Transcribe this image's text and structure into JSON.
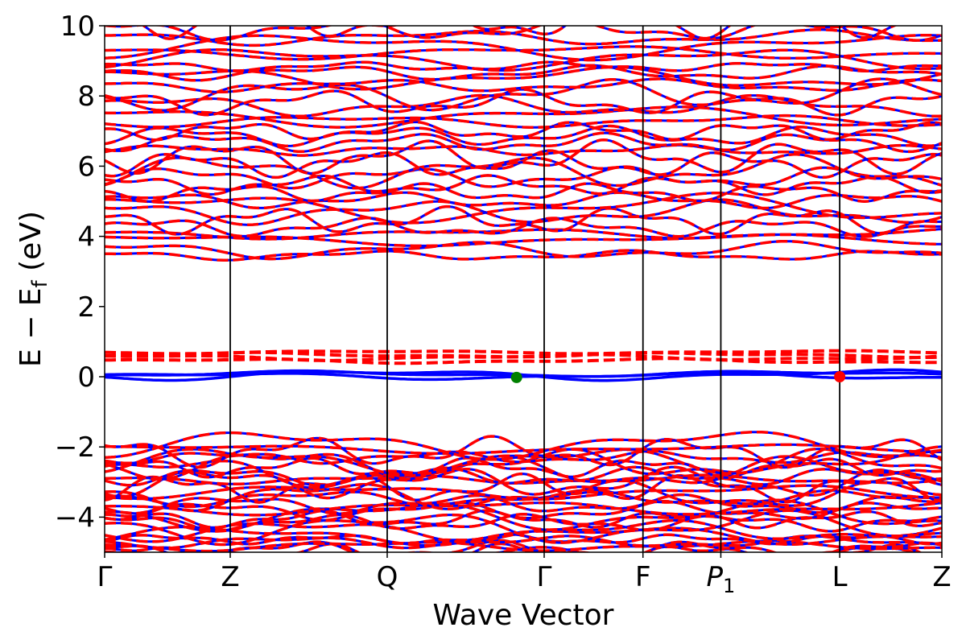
{
  "chart_data": {
    "type": "line",
    "xlabel": "Wave Vector",
    "ylabel_main": "E − E",
    "ylabel_sub": "f",
    "ylabel_unit": " (eV)",
    "ylim": [
      -5,
      10
    ],
    "yticks": [
      {
        "v": -4,
        "label": "−4"
      },
      {
        "v": -2,
        "label": "−2"
      },
      {
        "v": 0,
        "label": "0"
      },
      {
        "v": 2,
        "label": "2"
      },
      {
        "v": 4,
        "label": "4"
      },
      {
        "v": 6,
        "label": "6"
      },
      {
        "v": 8,
        "label": "8"
      },
      {
        "v": 10,
        "label": "10"
      }
    ],
    "kpoints": [
      {
        "x": 0.0,
        "label": "Γ"
      },
      {
        "x": 1.5,
        "label": "Z"
      },
      {
        "x": 3.375,
        "label": "Q"
      },
      {
        "x": 5.25,
        "label": "Γ"
      },
      {
        "x": 6.43,
        "label": "F"
      },
      {
        "x": 7.36,
        "label": "P",
        "sub": "1"
      },
      {
        "x": 8.78,
        "label": "L"
      },
      {
        "x": 10.0,
        "label": "Z"
      }
    ],
    "xlim": [
      0,
      10
    ],
    "spin_up_color": "#0000ff",
    "spin_down_color": "#ff0000",
    "gap_bands_up": [
      {
        "base": 0.02,
        "amp": 0.12
      },
      {
        "base": 0.08,
        "amp": -0.1
      },
      {
        "base": 0.05,
        "amp": 0.18
      }
    ],
    "gap_bands_down": [
      {
        "base": 0.45,
        "amp": 0.08
      },
      {
        "base": 0.55,
        "amp": 0.1
      },
      {
        "base": 0.62,
        "amp": -0.08
      },
      {
        "base": 0.7,
        "amp": 0.05
      }
    ],
    "conduction_band_range": [
      3.4,
      10.2
    ],
    "conduction_band_count": 34,
    "valence_band_range": [
      -5.2,
      -1.85
    ],
    "valence_band_count": 30,
    "markers": [
      {
        "x": 4.92,
        "y": -0.02,
        "color": "#008000"
      },
      {
        "x": 8.78,
        "y": 0.0,
        "color": "#ff0000"
      }
    ]
  }
}
